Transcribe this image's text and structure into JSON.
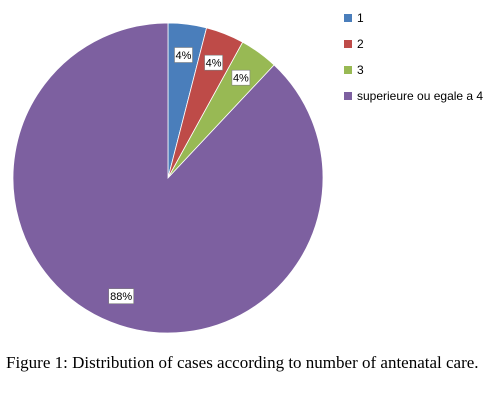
{
  "chart_data": {
    "type": "pie",
    "categories": [
      "1",
      "2",
      "3",
      "superieure ou egale a 4"
    ],
    "values": [
      4,
      4,
      4,
      88
    ],
    "data_labels": [
      "4%",
      "4%",
      "4%",
      "88%"
    ],
    "colors": [
      "#4a7ebb",
      "#be4b48",
      "#98b954",
      "#7d60a0"
    ],
    "legend_position": "right"
  },
  "caption": {
    "label": "Figure 1:",
    "text": "Distribution of cases according to number of antenatal care."
  }
}
